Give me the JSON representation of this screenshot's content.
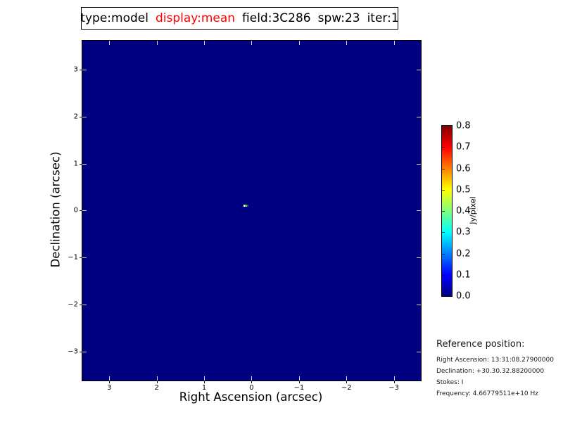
{
  "title_bar": {
    "segments": [
      {
        "text": "type:model",
        "color": "#000000"
      },
      {
        "text": "display:mean",
        "color": "#ff0000"
      },
      {
        "text": "field:3C286",
        "color": "#000000"
      },
      {
        "text": "spw:23",
        "color": "#000000"
      },
      {
        "text": "iter:1",
        "color": "#000000"
      }
    ]
  },
  "chart_data": {
    "type": "heatmap",
    "title": "type:model display:mean field:3C286 spw:23 iter:1",
    "xlabel": "Right Ascension (arcsec)",
    "ylabel": "Declination (arcsec)",
    "x_tick_labels": [
      "3",
      "2",
      "1",
      "0",
      "−1",
      "−2",
      "−3"
    ],
    "y_tick_labels": [
      "3",
      "2",
      "1",
      "0",
      "−1",
      "−2",
      "−3"
    ],
    "xlim": [
      3.6,
      -3.6
    ],
    "ylim": [
      -3.6,
      3.6
    ],
    "grid": false,
    "colormap": "jet",
    "background_color": "#000080",
    "values": {
      "background": 0.0,
      "peak": 0.8,
      "units": "Jy/pixel"
    },
    "point_source": {
      "x_arcsec": 0.15,
      "y_arcsec": 0.1,
      "note": "single bright model component pixel near field center"
    },
    "colorbar": {
      "label": "Jy/pixel",
      "tick_labels": [
        "0.8",
        "0.7",
        "0.6",
        "0.5",
        "0.4",
        "0.3",
        "0.2",
        "0.1",
        "0.0"
      ],
      "min": 0.0,
      "max": 0.8
    }
  },
  "reference_block": {
    "heading": "Reference position:",
    "lines": [
      "Right Ascension: 13:31:08.27900000",
      "Declination: +30.30.32.88200000",
      "Stokes: I",
      "Frequency: 4.66779511e+10 Hz"
    ]
  }
}
